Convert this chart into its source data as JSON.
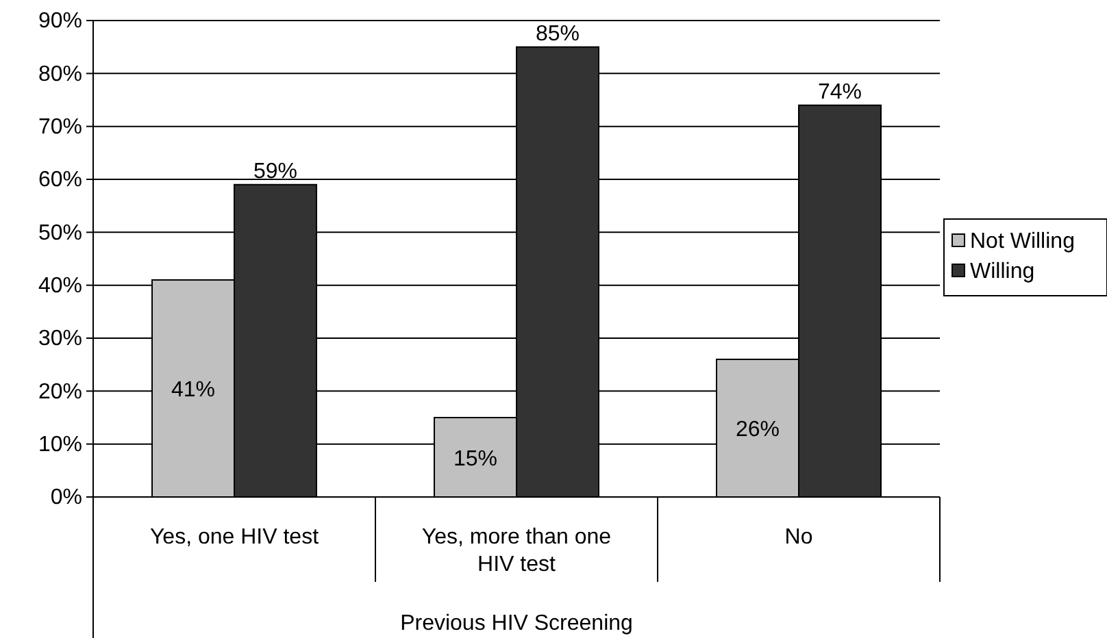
{
  "chart_data": {
    "type": "bar",
    "xlabel": "Previous HIV Screening",
    "categories": [
      "Yes, one HIV test",
      "Yes, more than one HIV test",
      "No"
    ],
    "series": [
      {
        "name": "Not Willing",
        "color": "#c0c0c0",
        "values": [
          41,
          15,
          26
        ],
        "value_labels": [
          "41%",
          "15%",
          "26%"
        ]
      },
      {
        "name": "Willing",
        "color": "#333333",
        "values": [
          59,
          85,
          74
        ],
        "value_labels": [
          "59%",
          "85%",
          "74%"
        ]
      }
    ],
    "ylim": [
      0,
      90
    ],
    "yticks": [
      {
        "value": 0,
        "label": "0%"
      },
      {
        "value": 10,
        "label": "10%"
      },
      {
        "value": 20,
        "label": "20%"
      },
      {
        "value": 30,
        "label": "30%"
      },
      {
        "value": 40,
        "label": "40%"
      },
      {
        "value": 50,
        "label": "50%"
      },
      {
        "value": 60,
        "label": "60%"
      },
      {
        "value": 70,
        "label": "70%"
      },
      {
        "value": 80,
        "label": "80%"
      },
      {
        "value": 90,
        "label": "90%"
      }
    ],
    "grid": "y",
    "legend": "right"
  }
}
